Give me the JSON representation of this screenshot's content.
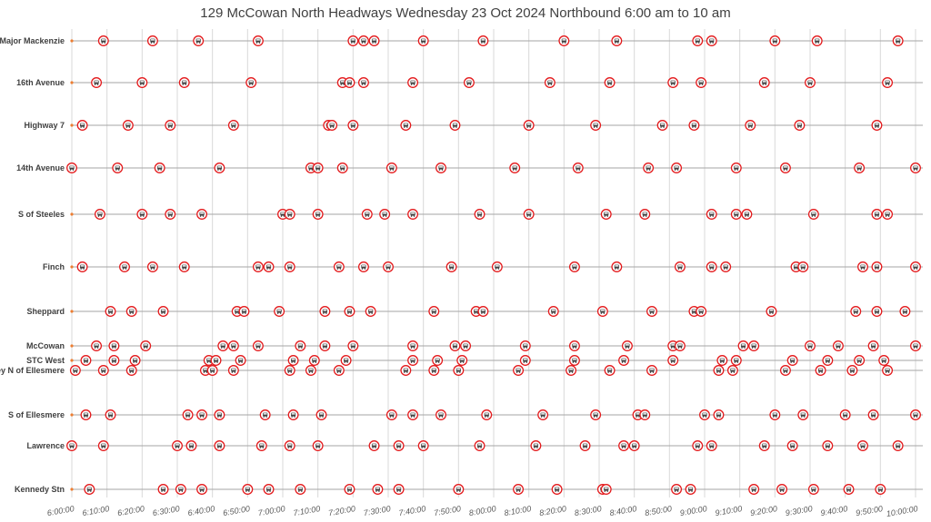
{
  "colors": {
    "grid": "#d9d9d9",
    "route_line": "#a6a6a6",
    "marker_ring": "#e31a1c",
    "marker_fill": "#ffffff",
    "stop_dot": "#ed7d31",
    "text": "#404040"
  },
  "icon": "bus-icon",
  "chart_data": {
    "type": "scatter",
    "title": "129 McCowan North Headways Wednesday 23 Oct 2024 Northbound 6:00 am to 10 am",
    "xlim": [
      "6:00:00",
      "10:00:00"
    ],
    "x_ticks": [
      "6:00:00",
      "6:10:00",
      "6:20:00",
      "6:30:00",
      "6:40:00",
      "6:50:00",
      "7:00:00",
      "7:10:00",
      "7:20:00",
      "7:30:00",
      "7:40:00",
      "7:50:00",
      "8:00:00",
      "8:10:00",
      "8:20:00",
      "8:30:00",
      "8:40:00",
      "8:50:00",
      "9:00:00",
      "9:10:00",
      "9:20:00",
      "9:30:00",
      "9:40:00",
      "9:50:00",
      "10:00:00"
    ],
    "grid": true,
    "series": [
      {
        "name": "S of Major Mackenzie",
        "times": [
          "6:09:00",
          "6:23:00",
          "6:36:00",
          "6:53:00",
          "7:20:00",
          "7:23:00",
          "7:26:00",
          "7:40:00",
          "7:57:00",
          "8:20:00",
          "8:35:00",
          "8:58:00",
          "9:02:00",
          "9:20:00",
          "9:32:00",
          "9:55:00"
        ]
      },
      {
        "name": "16th Avenue",
        "times": [
          "6:07:00",
          "6:20:00",
          "6:32:00",
          "6:51:00",
          "7:17:00",
          "7:19:00",
          "7:23:00",
          "7:37:00",
          "7:53:00",
          "8:16:00",
          "8:33:00",
          "8:51:00",
          "8:59:00",
          "9:17:00",
          "9:30:00",
          "9:52:00"
        ]
      },
      {
        "name": "Highway 7",
        "times": [
          "6:03:00",
          "6:16:00",
          "6:28:00",
          "6:46:00",
          "7:13:00",
          "7:14:00",
          "7:20:00",
          "7:35:00",
          "7:49:00",
          "8:10:00",
          "8:29:00",
          "8:48:00",
          "8:57:00",
          "9:13:00",
          "9:27:00",
          "9:49:00"
        ]
      },
      {
        "name": "14th Avenue",
        "times": [
          "6:00:00",
          "6:13:00",
          "6:25:00",
          "6:42:00",
          "7:08:00",
          "7:10:00",
          "7:17:00",
          "7:31:00",
          "7:45:00",
          "8:06:00",
          "8:24:00",
          "8:44:00",
          "8:52:00",
          "9:09:00",
          "9:23:00",
          "9:44:00",
          "10:00:00"
        ]
      },
      {
        "name": "S of Steeles",
        "times": [
          "6:08:00",
          "6:20:00",
          "6:28:00",
          "6:37:00",
          "7:00:00",
          "7:02:00",
          "7:10:00",
          "7:24:00",
          "7:29:00",
          "7:37:00",
          "7:56:00",
          "8:10:00",
          "8:32:00",
          "8:43:00",
          "9:02:00",
          "9:09:00",
          "9:12:00",
          "9:31:00",
          "9:49:00",
          "9:52:00"
        ]
      },
      {
        "name": "Finch",
        "times": [
          "6:03:00",
          "6:15:00",
          "6:23:00",
          "6:32:00",
          "6:53:00",
          "6:56:00",
          "7:02:00",
          "7:16:00",
          "7:23:00",
          "7:30:00",
          "7:48:00",
          "8:01:00",
          "8:23:00",
          "8:35:00",
          "8:53:00",
          "9:02:00",
          "9:06:00",
          "9:26:00",
          "9:28:00",
          "9:45:00",
          "9:49:00",
          "10:00:00"
        ]
      },
      {
        "name": "Sheppard",
        "times": [
          "6:11:00",
          "6:17:00",
          "6:26:00",
          "6:47:00",
          "6:49:00",
          "6:59:00",
          "7:12:00",
          "7:19:00",
          "7:25:00",
          "7:43:00",
          "7:55:00",
          "7:57:00",
          "8:17:00",
          "8:31:00",
          "8:45:00",
          "8:57:00",
          "8:59:00",
          "9:19:00",
          "9:43:00",
          "9:49:00",
          "9:57:00"
        ]
      },
      {
        "name": "McCowan",
        "times": [
          "6:07:00",
          "6:12:00",
          "6:21:00",
          "6:43:00",
          "6:46:00",
          "6:53:00",
          "7:05:00",
          "7:12:00",
          "7:20:00",
          "7:37:00",
          "7:49:00",
          "7:52:00",
          "8:09:00",
          "8:23:00",
          "8:38:00",
          "8:51:00",
          "8:53:00",
          "9:11:00",
          "9:14:00",
          "9:30:00",
          "9:38:00",
          "9:48:00",
          "10:00:00"
        ]
      },
      {
        "name": "STC West",
        "times": [
          "6:04:00",
          "6:12:00",
          "6:18:00",
          "6:39:00",
          "6:41:00",
          "6:48:00",
          "7:03:00",
          "7:09:00",
          "7:18:00",
          "7:37:00",
          "7:44:00",
          "7:51:00",
          "8:09:00",
          "8:23:00",
          "8:37:00",
          "8:51:00",
          "9:05:00",
          "9:09:00",
          "9:25:00",
          "9:35:00",
          "9:44:00",
          "9:51:00"
        ]
      },
      {
        "name": "Brimley N of Ellesmere",
        "times": [
          "6:01:00",
          "6:09:00",
          "6:17:00",
          "6:38:00",
          "6:40:00",
          "6:46:00",
          "7:02:00",
          "7:08:00",
          "7:16:00",
          "7:35:00",
          "7:43:00",
          "7:50:00",
          "8:07:00",
          "8:22:00",
          "8:33:00",
          "8:45:00",
          "9:04:00",
          "9:08:00",
          "9:23:00",
          "9:33:00",
          "9:42:00",
          "9:52:00"
        ]
      },
      {
        "name": "S of Ellesmere",
        "times": [
          "6:04:00",
          "6:11:00",
          "6:33:00",
          "6:37:00",
          "6:42:00",
          "6:55:00",
          "7:03:00",
          "7:11:00",
          "7:31:00",
          "7:37:00",
          "7:45:00",
          "7:58:00",
          "8:14:00",
          "8:29:00",
          "8:41:00",
          "8:43:00",
          "9:00:00",
          "9:04:00",
          "9:20:00",
          "9:28:00",
          "9:40:00",
          "9:48:00",
          "10:00:00"
        ]
      },
      {
        "name": "Lawrence",
        "times": [
          "6:00:00",
          "6:09:00",
          "6:30:00",
          "6:34:00",
          "6:42:00",
          "6:54:00",
          "7:02:00",
          "7:10:00",
          "7:26:00",
          "7:33:00",
          "7:40:00",
          "7:56:00",
          "8:12:00",
          "8:26:00",
          "8:37:00",
          "8:40:00",
          "8:58:00",
          "9:02:00",
          "9:17:00",
          "9:25:00",
          "9:35:00",
          "9:45:00",
          "9:55:00"
        ]
      },
      {
        "name": "Kennedy Stn",
        "times": [
          "6:05:00",
          "6:26:00",
          "6:31:00",
          "6:37:00",
          "6:50:00",
          "6:56:00",
          "7:05:00",
          "7:19:00",
          "7:27:00",
          "7:33:00",
          "7:50:00",
          "8:07:00",
          "8:18:00",
          "8:31:00",
          "8:32:00",
          "8:52:00",
          "8:56:00",
          "9:14:00",
          "9:22:00",
          "9:31:00",
          "9:41:00",
          "9:50:00"
        ]
      }
    ]
  }
}
